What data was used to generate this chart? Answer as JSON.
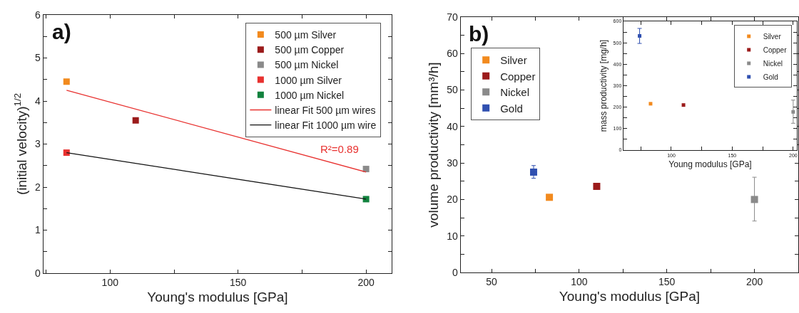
{
  "chart_data": [
    {
      "type": "scatter",
      "xlabel": "Young's modulus [GPa]",
      "ylabel": "(initial velocity)$^{1/2}$",
      "annotations": [
        "a)",
        "R²=0.89"
      ],
      "marker": "square",
      "legend": "top right",
      "grid": false,
      "xlim": [
        74,
        210
      ],
      "ylim": [
        0,
        6
      ],
      "xticks": [
        {
          "value": 75,
          "label": null
        },
        100,
        {
          "value": 125,
          "label": null
        },
        150,
        {
          "value": 175,
          "label": null
        },
        200
      ],
      "yticks": [
        0,
        {
          "value": 0.5,
          "label": null
        },
        1,
        {
          "value": 1.5,
          "label": null
        },
        2,
        {
          "value": 2.5,
          "label": null
        },
        3,
        {
          "value": 3.5,
          "label": null
        },
        4,
        {
          "value": 4.5,
          "label": null
        },
        5,
        {
          "value": 5.5,
          "label": null
        },
        6
      ],
      "series": [
        {
          "name": "500 µm Silver",
          "color": "#f28a1e",
          "x": [
            83
          ],
          "values": [
            4.45
          ]
        },
        {
          "name": "500 µm Copper",
          "color": "#9b1b1b",
          "x": [
            110
          ],
          "values": [
            3.55
          ]
        },
        {
          "name": "500 µm Nickel",
          "color": "#8a8a8a",
          "x": [
            200
          ],
          "values": [
            2.42
          ]
        },
        {
          "name": "1000 µm Silver",
          "color": "#e8312f",
          "x": [
            83
          ],
          "values": [
            2.8
          ]
        },
        {
          "name": "1000 µm Nickel",
          "color": "#12823e",
          "x": [
            200
          ],
          "values": [
            1.72
          ]
        },
        {
          "name": "linear Fit 500 µm wires",
          "type": "line",
          "marker": "none",
          "color": "#e8312f",
          "x": [
            83,
            200
          ],
          "values": [
            4.25,
            2.35
          ]
        },
        {
          "name": "linear Fit 1000 µm wire",
          "type": "line",
          "marker": "none",
          "color": "#111111",
          "x": [
            83,
            200
          ],
          "values": [
            2.8,
            1.72
          ]
        }
      ]
    },
    {
      "type": "scatter",
      "xlabel": "Young's modulus [GPa]",
      "ylabel": "volume productivity [mm³/h]",
      "annotations": [
        "b)"
      ],
      "marker": "square",
      "legend": "top left",
      "grid": false,
      "xlim": [
        32.5,
        225
      ],
      "ylim": [
        0,
        70
      ],
      "xticks": [
        50,
        {
          "value": 75,
          "label": null
        },
        100,
        {
          "value": 125,
          "label": null
        },
        150,
        {
          "value": 175,
          "label": null
        },
        200
      ],
      "yticks": [
        0,
        {
          "value": 5,
          "label": null
        },
        10,
        {
          "value": 15,
          "label": null
        },
        20,
        {
          "value": 25,
          "label": null
        },
        30,
        {
          "value": 35,
          "label": null
        },
        40,
        {
          "value": 45,
          "label": null
        },
        50,
        {
          "value": 55,
          "label": null
        },
        60,
        {
          "value": 65,
          "label": null
        },
        70
      ],
      "series": [
        {
          "name": "Silver",
          "color": "#f28a1e",
          "x": [
            83
          ],
          "values": [
            20.6
          ]
        },
        {
          "name": "Copper",
          "color": "#9b1b1b",
          "x": [
            110
          ],
          "values": [
            23.6
          ]
        },
        {
          "name": "Nickel",
          "color": "#8a8a8a",
          "x": [
            200
          ],
          "values": [
            20
          ],
          "errors": [
            [
              14.1,
              26.1
            ]
          ]
        },
        {
          "name": "Gold",
          "color": "#3050b0",
          "x": [
            74
          ],
          "values": [
            27.5
          ],
          "errors": [
            [
              25.8,
              29.3
            ]
          ]
        }
      ]
    },
    {
      "type": "scatter",
      "xlabel": "Young modulus [GPa]",
      "ylabel": "mass productivity [mg/h]",
      "marker": "square",
      "legend": "top right",
      "grid": false,
      "xlim": [
        60.8,
        203
      ],
      "ylim": [
        0,
        600
      ],
      "xticks": [
        {
          "value": 75,
          "label": null
        },
        100,
        {
          "value": 125,
          "label": null
        },
        150,
        {
          "value": 175,
          "label": null
        },
        200
      ],
      "yticks": [
        0,
        {
          "value": 50,
          "label": null
        },
        100,
        {
          "value": 150,
          "label": null
        },
        200,
        {
          "value": 250,
          "label": null
        },
        300,
        {
          "value": 350,
          "label": null
        },
        400,
        {
          "value": 450,
          "label": null
        },
        500,
        {
          "value": 550,
          "label": null
        },
        600
      ],
      "series": [
        {
          "name": "Silver",
          "color": "#f28a1e",
          "x": [
            83
          ],
          "values": [
            216
          ]
        },
        {
          "name": "Copper",
          "color": "#9b1b1b",
          "x": [
            110
          ],
          "values": [
            210
          ]
        },
        {
          "name": "Nickel",
          "color": "#8a8a8a",
          "x": [
            200
          ],
          "values": [
            178
          ],
          "errors": [
            [
              125,
              233
            ]
          ]
        },
        {
          "name": "Gold",
          "color": "#3050b0",
          "x": [
            74
          ],
          "values": [
            532
          ],
          "errors": [
            [
              497,
              567
            ]
          ]
        }
      ]
    }
  ]
}
